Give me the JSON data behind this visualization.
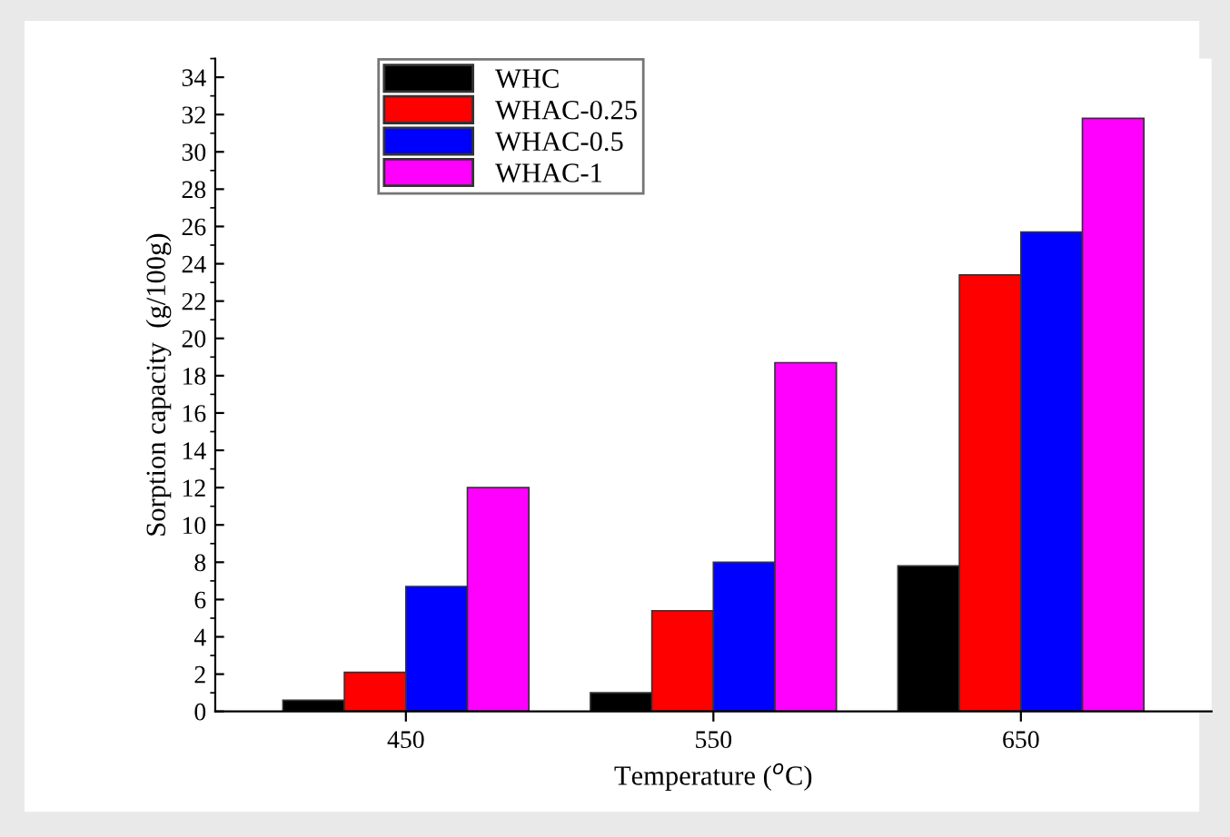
{
  "chart_data": {
    "type": "bar",
    "xlabel": "Temperature ($^{o}$C)",
    "ylabel": "Sorption capacity  (g/100g)",
    "categories": [
      "450",
      "550",
      "650"
    ],
    "series": [
      {
        "name": "WHC",
        "color": "#000000",
        "values": [
          0.6,
          1.0,
          7.8
        ]
      },
      {
        "name": "WHAC-0.25",
        "color": "#ff0000",
        "values": [
          2.1,
          5.4,
          23.4
        ]
      },
      {
        "name": "WHAC-0.5",
        "color": "#0000ff",
        "values": [
          6.7,
          8.0,
          25.7
        ]
      },
      {
        "name": "WHAC-1",
        "color": "#ff00ff",
        "values": [
          12.0,
          18.7,
          31.8
        ]
      }
    ],
    "ylim": [
      0,
      35
    ],
    "yticks": [
      0,
      2,
      4,
      6,
      8,
      10,
      12,
      14,
      16,
      18,
      20,
      22,
      24,
      26,
      28,
      30,
      32,
      34
    ],
    "grid": false,
    "legend": "top left"
  }
}
